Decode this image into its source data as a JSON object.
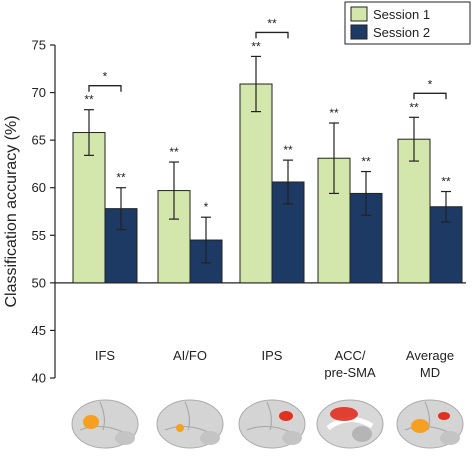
{
  "chart_data": {
    "type": "bar",
    "ylabel": "Classification accuracy (%)",
    "ylim": [
      40,
      75
    ],
    "yticks": [
      40,
      45,
      50,
      55,
      60,
      65,
      70,
      75
    ],
    "baseline": 50,
    "categories": [
      [
        "IFS"
      ],
      [
        "AI/FO"
      ],
      [
        "IPS"
      ],
      [
        "ACC/",
        "pre-SMA"
      ],
      [
        "Average",
        "MD"
      ]
    ],
    "series": [
      {
        "name": "Session 1",
        "color": "#d3e6ab",
        "values": [
          65.8,
          59.7,
          70.9,
          63.1,
          65.1
        ],
        "errors": [
          2.4,
          3.0,
          2.9,
          3.7,
          2.3
        ],
        "sig": [
          "**",
          "**",
          "**",
          "**",
          "**"
        ]
      },
      {
        "name": "Session 2",
        "color": "#1c3a64",
        "values": [
          57.8,
          54.5,
          60.6,
          59.4,
          58.0
        ],
        "errors": [
          2.2,
          2.4,
          2.3,
          2.3,
          1.6
        ],
        "sig": [
          "**",
          "*",
          "**",
          "**",
          "**"
        ]
      }
    ],
    "comparisons": [
      {
        "category": 0,
        "label": "*"
      },
      {
        "category": 2,
        "label": "**"
      },
      {
        "category": 4,
        "label": "*"
      }
    ],
    "legend_position": "top-right",
    "brain_icons": [
      {
        "category": 0,
        "region": "IFS",
        "highlight": "#f5a020"
      },
      {
        "category": 1,
        "region": "AI/FO",
        "highlight": "#f5a020"
      },
      {
        "category": 2,
        "region": "IPS",
        "highlight": "#e03020"
      },
      {
        "category": 3,
        "region": "ACC/pre-SMA",
        "highlight": "#e03020"
      },
      {
        "category": 4,
        "region": "Average MD",
        "highlight": "#f5a020"
      }
    ]
  }
}
